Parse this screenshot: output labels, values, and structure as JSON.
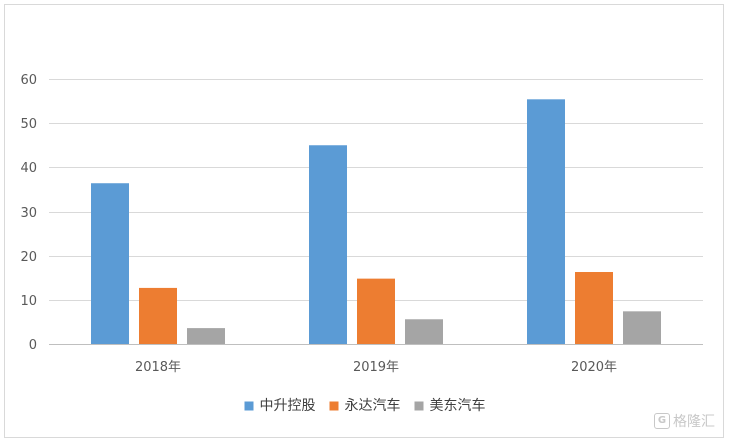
{
  "chart_data": {
    "type": "bar",
    "title": "",
    "xlabel": "",
    "ylabel": "",
    "categories": [
      "2018年",
      "2019年",
      "2020年"
    ],
    "series": [
      {
        "name": "中升控股",
        "values": [
          36.4,
          45.0,
          55.4
        ],
        "color": "#5b9bd5"
      },
      {
        "name": "永达汽车",
        "values": [
          12.7,
          14.8,
          16.3
        ],
        "color": "#ed7d31"
      },
      {
        "name": "美东汽车",
        "values": [
          3.6,
          5.6,
          7.4
        ],
        "color": "#a5a5a5"
      }
    ],
    "ylim": [
      0,
      60
    ],
    "yticks": [
      0,
      10,
      20,
      30,
      40,
      50,
      60
    ],
    "grid": true,
    "legend": "bottom"
  },
  "watermark": {
    "logo": "G",
    "text": "格隆汇"
  }
}
